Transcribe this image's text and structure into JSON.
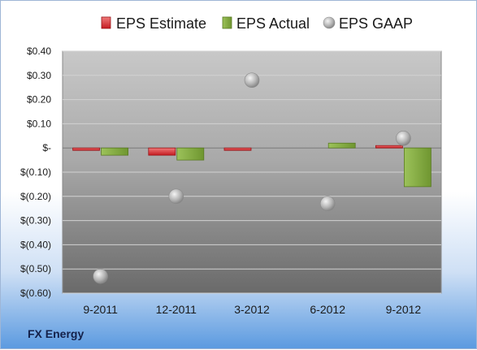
{
  "company": "FX Energy",
  "colors": {
    "estimate": "#d9262d",
    "actual": "#8cb043",
    "gaap": "#b8b8b8"
  },
  "chart_data": {
    "type": "bar",
    "title": "",
    "xlabel": "",
    "ylabel": "",
    "legend_position": "top",
    "grid": true,
    "ylim": [
      -0.6,
      0.4
    ],
    "yticks": [
      0.4,
      0.3,
      0.2,
      0.1,
      0.0,
      -0.1,
      -0.2,
      -0.3,
      -0.4,
      -0.5,
      -0.6
    ],
    "ytick_labels": [
      "$0.40",
      "$0.30",
      "$0.20",
      "$0.10",
      "$-",
      "$(0.10)",
      "$(0.20)",
      "$(0.30)",
      "$(0.40)",
      "$(0.50)",
      "$(0.60)"
    ],
    "categories": [
      "9-2011",
      "12-2011",
      "3-2012",
      "6-2012",
      "9-2012"
    ],
    "series": [
      {
        "name": "EPS Estimate",
        "type": "bar",
        "values": [
          -0.01,
          -0.03,
          -0.01,
          null,
          0.01
        ]
      },
      {
        "name": "EPS Actual",
        "type": "bar",
        "values": [
          -0.03,
          -0.05,
          null,
          0.02,
          -0.16
        ]
      },
      {
        "name": "EPS GAAP",
        "type": "scatter",
        "values": [
          -0.53,
          -0.2,
          0.28,
          -0.23,
          0.04
        ]
      }
    ]
  }
}
